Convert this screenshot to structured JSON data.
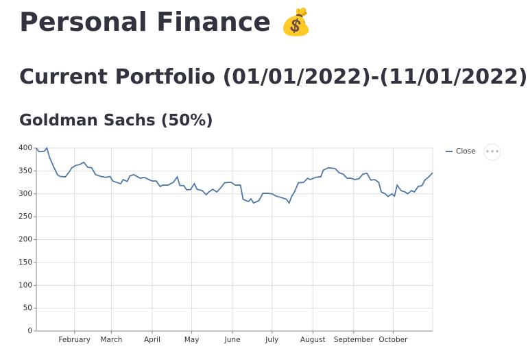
{
  "header": {
    "title": "Personal Finance 💰",
    "subtitle": "Current Portfolio (01/01/2022)-(11/01/2022)",
    "section": "Goldman Sachs (50%)"
  },
  "chart_data": {
    "type": "line",
    "x": [
      3,
      5,
      9,
      11,
      13,
      16,
      19,
      21,
      25,
      28,
      30,
      33,
      36,
      39,
      42,
      45,
      48,
      52,
      56,
      59,
      61,
      64,
      67,
      69,
      72,
      74,
      77,
      80,
      82,
      85,
      87,
      91,
      94,
      97,
      99,
      103,
      107,
      110,
      112,
      115,
      117,
      120,
      123,
      125,
      129,
      132,
      134,
      137,
      140,
      143,
      146,
      149,
      151,
      154,
      158,
      160,
      164,
      166,
      168,
      172,
      175,
      179,
      182,
      185,
      189,
      193,
      195,
      197,
      199,
      202,
      206,
      209,
      211,
      215,
      219,
      221,
      225,
      230,
      233,
      236,
      239,
      242,
      245,
      248,
      251,
      254,
      257,
      260,
      263,
      265,
      268,
      270,
      273,
      275,
      277,
      280,
      283,
      285,
      288,
      290,
      293,
      296,
      298,
      301,
      304
    ],
    "series": [
      {
        "name": "Close",
        "color": "#4c78a8",
        "values": [
          400,
          392,
          393,
          400,
          380,
          360,
          342,
          338,
          337,
          348,
          357,
          362,
          364,
          369,
          358,
          357,
          342,
          338,
          336,
          338,
          328,
          325,
          322,
          331,
          327,
          339,
          342,
          337,
          334,
          336,
          333,
          328,
          328,
          316,
          319,
          319,
          325,
          337,
          318,
          318,
          309,
          309,
          322,
          310,
          307,
          298,
          304,
          310,
          304,
          313,
          324,
          325,
          325,
          319,
          319,
          288,
          283,
          289,
          280,
          285,
          301,
          301,
          300,
          295,
          292,
          288,
          280,
          295,
          304,
          324,
          325,
          334,
          331,
          336,
          337,
          352,
          357,
          355,
          346,
          343,
          334,
          334,
          331,
          333,
          343,
          345,
          330,
          331,
          325,
          304,
          300,
          294,
          300,
          295,
          319,
          307,
          304,
          300,
          307,
          304,
          316,
          318,
          330,
          337,
          346
        ]
      }
    ],
    "xlim": [
      3,
      304
    ],
    "xticks": [
      {
        "value": 32,
        "label": "February"
      },
      {
        "value": 60,
        "label": "March"
      },
      {
        "value": 91,
        "label": "April"
      },
      {
        "value": 121,
        "label": "May"
      },
      {
        "value": 152,
        "label": "June"
      },
      {
        "value": 182,
        "label": "July"
      },
      {
        "value": 213,
        "label": "August"
      },
      {
        "value": 244,
        "label": "September"
      },
      {
        "value": 274,
        "label": "October"
      }
    ],
    "ylim": [
      0,
      400
    ],
    "yticks": [
      0,
      50,
      100,
      150,
      200,
      250,
      300,
      350,
      400
    ],
    "grid": true,
    "legend": "right"
  }
}
